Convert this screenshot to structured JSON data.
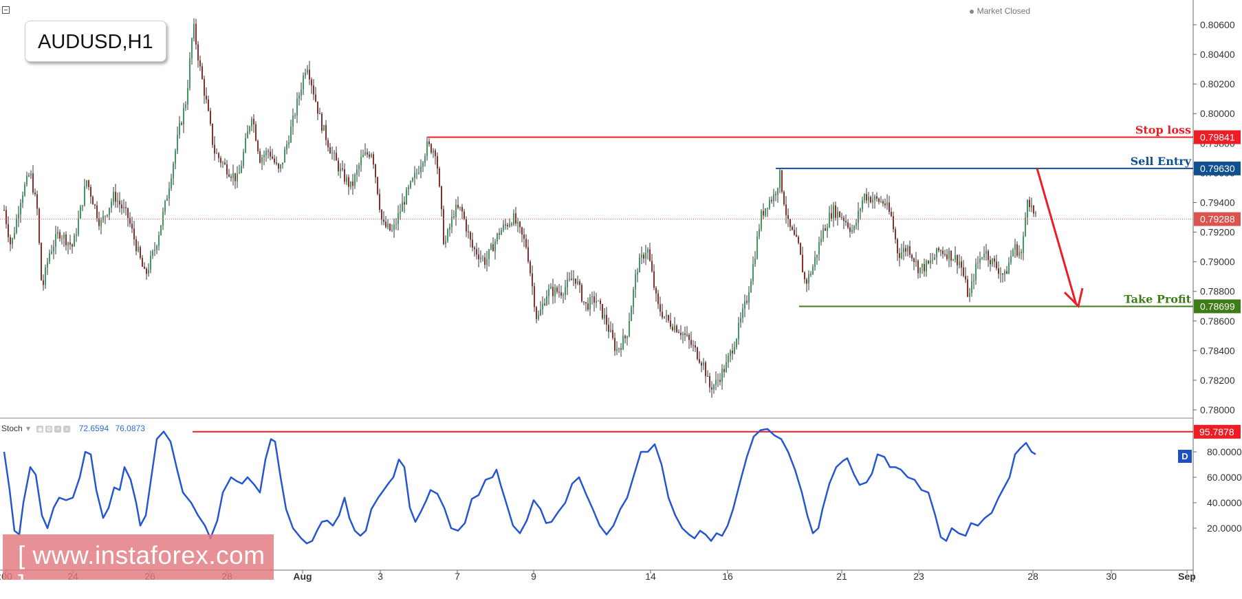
{
  "symbol": "AUDUSD,H1",
  "status": "Market Closed",
  "watermark": "[ www.instaforex.com ]",
  "chart_data": [
    {
      "type": "candlestick",
      "title": "AUDUSD,H1",
      "ylim": [
        0.779,
        0.807
      ],
      "y_ticks": [
        0.806,
        0.804,
        0.802,
        0.8,
        0.798,
        0.796,
        0.794,
        0.792,
        0.79,
        0.788,
        0.786,
        0.784,
        0.782,
        0.78
      ],
      "y_tick_labels": [
        "0.80600",
        "0.80400",
        "0.80200",
        "0.80000",
        "0.79800",
        "0.79600",
        "0.79400",
        "0.79200",
        "0.79000",
        "0.78800",
        "0.78600",
        "0.78400",
        "0.78200",
        "0.78000"
      ],
      "x_tick_labels": [
        ":00",
        "24",
        "26",
        "28",
        "Aug",
        "3",
        "7",
        "9",
        "14",
        "16",
        "21",
        "23",
        "28",
        "30",
        "Sep"
      ],
      "price_path": [
        [
          0,
          0.7935
        ],
        [
          10,
          0.791
        ],
        [
          25,
          0.7945
        ],
        [
          38,
          0.796
        ],
        [
          48,
          0.7935
        ],
        [
          55,
          0.788
        ],
        [
          65,
          0.7905
        ],
        [
          80,
          0.792
        ],
        [
          100,
          0.791
        ],
        [
          120,
          0.7955
        ],
        [
          140,
          0.7925
        ],
        [
          160,
          0.7945
        ],
        [
          180,
          0.793
        ],
        [
          205,
          0.789
        ],
        [
          220,
          0.791
        ],
        [
          235,
          0.794
        ],
        [
          255,
          0.799
        ],
        [
          265,
          0.801
        ],
        [
          275,
          0.806
        ],
        [
          285,
          0.803
        ],
        [
          295,
          0.8005
        ],
        [
          305,
          0.7975
        ],
        [
          320,
          0.7965
        ],
        [
          340,
          0.7955
        ],
        [
          360,
          0.8
        ],
        [
          372,
          0.797
        ],
        [
          385,
          0.7975
        ],
        [
          400,
          0.796
        ],
        [
          420,
          0.7995
        ],
        [
          440,
          0.8035
        ],
        [
          450,
          0.8015
        ],
        [
          460,
          0.7995
        ],
        [
          475,
          0.7975
        ],
        [
          490,
          0.796
        ],
        [
          505,
          0.795
        ],
        [
          520,
          0.797
        ],
        [
          535,
          0.7975
        ],
        [
          550,
          0.7925
        ],
        [
          565,
          0.792
        ],
        [
          580,
          0.794
        ],
        [
          600,
          0.796
        ],
        [
          615,
          0.7978
        ],
        [
          628,
          0.7975
        ],
        [
          640,
          0.791
        ],
        [
          655,
          0.7935
        ],
        [
          665,
          0.7935
        ],
        [
          680,
          0.791
        ],
        [
          700,
          0.79
        ],
        [
          720,
          0.792
        ],
        [
          740,
          0.793
        ],
        [
          760,
          0.791
        ],
        [
          775,
          0.786
        ],
        [
          790,
          0.788
        ],
        [
          810,
          0.788
        ],
        [
          830,
          0.789
        ],
        [
          845,
          0.787
        ],
        [
          860,
          0.7875
        ],
        [
          875,
          0.786
        ],
        [
          890,
          0.784
        ],
        [
          905,
          0.785
        ],
        [
          920,
          0.7895
        ],
        [
          935,
          0.791
        ],
        [
          950,
          0.787
        ],
        [
          965,
          0.786
        ],
        [
          980,
          0.7855
        ],
        [
          990,
          0.785
        ],
        [
          1005,
          0.784
        ],
        [
          1018,
          0.783
        ],
        [
          1025,
          0.7815
        ],
        [
          1035,
          0.7818
        ],
        [
          1050,
          0.783
        ],
        [
          1065,
          0.785
        ],
        [
          1080,
          0.7875
        ],
        [
          1090,
          0.79
        ],
        [
          1100,
          0.793
        ],
        [
          1110,
          0.794
        ],
        [
          1120,
          0.7945
        ],
        [
          1128,
          0.7958
        ],
        [
          1140,
          0.7925
        ],
        [
          1155,
          0.791
        ],
        [
          1165,
          0.7885
        ],
        [
          1175,
          0.7895
        ],
        [
          1190,
          0.792
        ],
        [
          1205,
          0.7935
        ],
        [
          1220,
          0.793
        ],
        [
          1235,
          0.792
        ],
        [
          1250,
          0.7945
        ],
        [
          1265,
          0.7942
        ],
        [
          1280,
          0.794
        ],
        [
          1290,
          0.793
        ],
        [
          1300,
          0.7905
        ],
        [
          1315,
          0.791
        ],
        [
          1330,
          0.7895
        ],
        [
          1345,
          0.7898
        ],
        [
          1360,
          0.7908
        ],
        [
          1375,
          0.7905
        ],
        [
          1390,
          0.79
        ],
        [
          1403,
          0.7875
        ],
        [
          1412,
          0.7895
        ],
        [
          1425,
          0.7908
        ],
        [
          1440,
          0.7898
        ],
        [
          1455,
          0.789
        ],
        [
          1468,
          0.791
        ],
        [
          1480,
          0.7905
        ],
        [
          1488,
          0.7945
        ],
        [
          1497,
          0.7932
        ],
        [
          1500,
          0.7929
        ]
      ],
      "lines": [
        {
          "label": "Stop loss",
          "value": 0.79841,
          "value_label": "0.79841",
          "color": "#ee1c24"
        },
        {
          "label": "Sell Entry",
          "value": 0.7963,
          "value_label": "0.79630",
          "color": "#10508f"
        },
        {
          "label": "Take Profit",
          "value": 0.78699,
          "value_label": "0.78699",
          "color": "#3f7b17"
        },
        {
          "label": "",
          "value": 0.79288,
          "value_label": "0.79288",
          "color": "#d9534f"
        }
      ]
    },
    {
      "type": "line",
      "title": "Stoch",
      "legend_values": [
        "72.6594",
        "76.0873"
      ],
      "ylim": [
        0,
        100
      ],
      "y_tick_labels": [
        "80.0000",
        "60.0000",
        "40.0000",
        "20.0000"
      ],
      "level_line": {
        "value": 95.7878,
        "value_label": "95.7878",
        "color": "#ee1c24"
      },
      "flag": "D",
      "series": [
        {
          "color": "#2456d3",
          "values": [
            [
              0,
              80
            ],
            [
              8,
              50
            ],
            [
              15,
              18
            ],
            [
              22,
              15
            ],
            [
              28,
              40
            ],
            [
              38,
              68
            ],
            [
              46,
              62
            ],
            [
              55,
              30
            ],
            [
              63,
              20
            ],
            [
              72,
              36
            ],
            [
              80,
              44
            ],
            [
              90,
              42
            ],
            [
              100,
              44
            ],
            [
              110,
              60
            ],
            [
              118,
              80
            ],
            [
              126,
              78
            ],
            [
              134,
              50
            ],
            [
              144,
              28
            ],
            [
              152,
              36
            ],
            [
              160,
              52
            ],
            [
              168,
              50
            ],
            [
              175,
              68
            ],
            [
              184,
              58
            ],
            [
              192,
              40
            ],
            [
              198,
              22
            ],
            [
              206,
              30
            ],
            [
              214,
              60
            ],
            [
              222,
              90
            ],
            [
              232,
              96
            ],
            [
              242,
              88
            ],
            [
              252,
              65
            ],
            [
              260,
              48
            ],
            [
              272,
              40
            ],
            [
              282,
              30
            ],
            [
              292,
              22
            ],
            [
              300,
              12
            ],
            [
              310,
              26
            ],
            [
              318,
              48
            ],
            [
              330,
              60
            ],
            [
              338,
              57
            ],
            [
              346,
              55
            ],
            [
              354,
              60
            ],
            [
              364,
              54
            ],
            [
              372,
              48
            ],
            [
              380,
              74
            ],
            [
              388,
              90
            ],
            [
              394,
              88
            ],
            [
              402,
              60
            ],
            [
              410,
              35
            ],
            [
              420,
              20
            ],
            [
              432,
              12
            ],
            [
              440,
              8
            ],
            [
              448,
              10
            ],
            [
              455,
              18
            ],
            [
              462,
              25
            ],
            [
              470,
              26
            ],
            [
              478,
              22
            ],
            [
              487,
              30
            ],
            [
              495,
              44
            ],
            [
              502,
              28
            ],
            [
              510,
              18
            ],
            [
              518,
              14
            ],
            [
              526,
              18
            ],
            [
              534,
              35
            ],
            [
              544,
              44
            ],
            [
              552,
              50
            ],
            [
              560,
              56
            ],
            [
              566,
              60
            ],
            [
              574,
              74
            ],
            [
              582,
              68
            ],
            [
              590,
              36
            ],
            [
              598,
              25
            ],
            [
              606,
              33
            ],
            [
              614,
              42
            ],
            [
              620,
              50
            ],
            [
              630,
              47
            ],
            [
              640,
              36
            ],
            [
              650,
              20
            ],
            [
              660,
              18
            ],
            [
              670,
              24
            ],
            [
              680,
              43
            ],
            [
              690,
              46
            ],
            [
              700,
              58
            ],
            [
              710,
              60
            ],
            [
              716,
              66
            ],
            [
              722,
              54
            ],
            [
              730,
              40
            ],
            [
              740,
              22
            ],
            [
              750,
              16
            ],
            [
              760,
              26
            ],
            [
              770,
              42
            ],
            [
              780,
              35
            ],
            [
              788,
              24
            ],
            [
              796,
              25
            ],
            [
              806,
              33
            ],
            [
              816,
              40
            ],
            [
              826,
              55
            ],
            [
              836,
              60
            ],
            [
              846,
              47
            ],
            [
              856,
              35
            ],
            [
              866,
              22
            ],
            [
              876,
              15
            ],
            [
              886,
              22
            ],
            [
              896,
              35
            ],
            [
              906,
              44
            ],
            [
              916,
              62
            ],
            [
              926,
              80
            ],
            [
              936,
              80
            ],
            [
              946,
              86
            ],
            [
              956,
              70
            ],
            [
              966,
              44
            ],
            [
              976,
              30
            ],
            [
              986,
              20
            ],
            [
              996,
              15
            ],
            [
              1004,
              12
            ],
            [
              1012,
              18
            ],
            [
              1020,
              15
            ],
            [
              1028,
              10
            ],
            [
              1036,
              16
            ],
            [
              1044,
              14
            ],
            [
              1052,
              22
            ],
            [
              1060,
              35
            ],
            [
              1070,
              56
            ],
            [
              1080,
              76
            ],
            [
              1090,
              92
            ],
            [
              1100,
              97
            ],
            [
              1110,
              98
            ],
            [
              1120,
              93
            ],
            [
              1130,
              90
            ],
            [
              1140,
              80
            ],
            [
              1150,
              66
            ],
            [
              1160,
              48
            ],
            [
              1168,
              30
            ],
            [
              1176,
              16
            ],
            [
              1184,
              20
            ],
            [
              1190,
              35
            ],
            [
              1200,
              55
            ],
            [
              1210,
              68
            ],
            [
              1220,
              73
            ],
            [
              1226,
              75
            ],
            [
              1236,
              62
            ],
            [
              1244,
              54
            ],
            [
              1254,
              56
            ],
            [
              1262,
              63
            ],
            [
              1270,
              78
            ],
            [
              1280,
              76
            ],
            [
              1288,
              68
            ],
            [
              1296,
              68
            ],
            [
              1304,
              66
            ],
            [
              1314,
              60
            ],
            [
              1324,
              58
            ],
            [
              1334,
              50
            ],
            [
              1344,
              48
            ],
            [
              1354,
              30
            ],
            [
              1362,
              13
            ],
            [
              1370,
              10
            ],
            [
              1378,
              20
            ],
            [
              1388,
              16
            ],
            [
              1398,
              14
            ],
            [
              1406,
              24
            ],
            [
              1416,
              22
            ],
            [
              1426,
              28
            ],
            [
              1436,
              32
            ],
            [
              1446,
              44
            ],
            [
              1452,
              50
            ],
            [
              1462,
              60
            ],
            [
              1470,
              78
            ],
            [
              1478,
              83
            ],
            [
              1486,
              87
            ],
            [
              1494,
              80
            ],
            [
              1500,
              78
            ]
          ]
        }
      ]
    }
  ]
}
